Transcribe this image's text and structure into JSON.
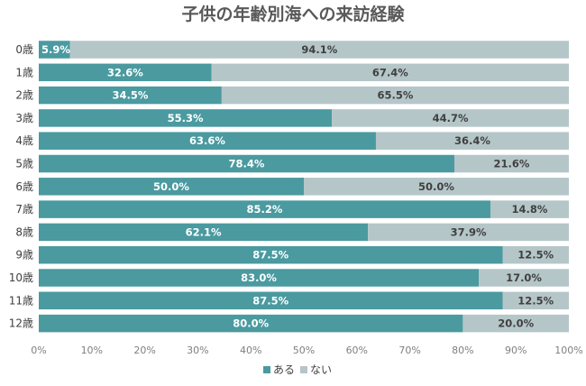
{
  "chart_data": {
    "type": "bar",
    "orientation": "horizontal",
    "stacked": "percent",
    "title": "子供の年齢別海への来訪経験",
    "xlabel": "",
    "ylabel": "",
    "categories": [
      "0歳",
      "1歳",
      "2歳",
      "3歳",
      "4歳",
      "5歳",
      "6歳",
      "7歳",
      "8歳",
      "9歳",
      "10歳",
      "11歳",
      "12歳"
    ],
    "series": [
      {
        "name": "ある",
        "color": "#4a9aa0",
        "values": [
          5.9,
          32.6,
          34.5,
          55.3,
          63.6,
          78.4,
          50.0,
          85.2,
          62.1,
          87.5,
          83.0,
          87.5,
          80.0
        ],
        "labels": [
          "5.9%",
          "32.6%",
          "34.5%",
          "55.3%",
          "63.6%",
          "78.4%",
          "50.0%",
          "85.2%",
          "62.1%",
          "87.5%",
          "83.0%",
          "87.5%",
          "80.0%"
        ]
      },
      {
        "name": "ない",
        "color": "#b5c6c8",
        "values": [
          94.1,
          67.4,
          65.5,
          44.7,
          36.4,
          21.6,
          50.0,
          14.8,
          37.9,
          12.5,
          17.0,
          12.5,
          20.0
        ],
        "labels": [
          "94.1%",
          "67.4%",
          "65.5%",
          "44.7%",
          "36.4%",
          "21.6%",
          "50.0%",
          "14.8%",
          "37.9%",
          "12.5%",
          "17.0%",
          "12.5%",
          "20.0%"
        ]
      }
    ],
    "xlim": [
      0,
      100
    ],
    "xticks": [
      "0%",
      "10%",
      "20%",
      "30%",
      "40%",
      "50%",
      "60%",
      "70%",
      "80%",
      "90%",
      "100%"
    ],
    "legend_position": "bottom",
    "grid": false
  }
}
